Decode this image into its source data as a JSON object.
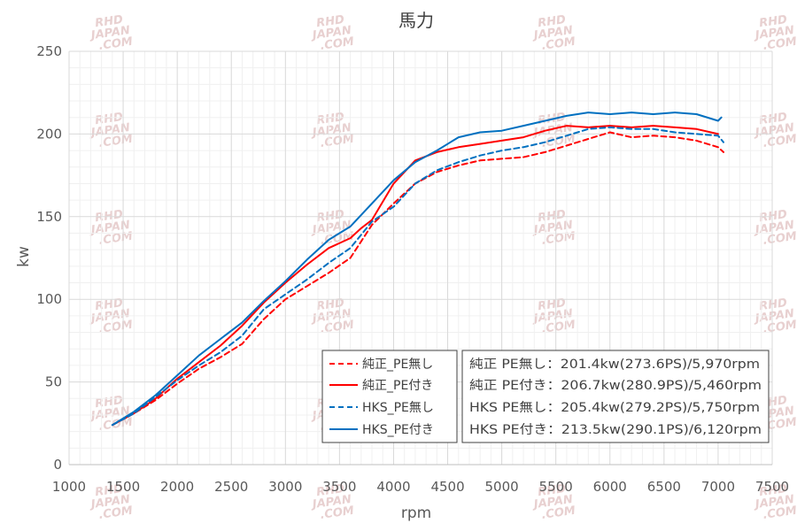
{
  "chart_data": {
    "type": "line",
    "title": "馬力",
    "xlabel": "rpm",
    "ylabel": "kw",
    "xlim": [
      1000,
      7500
    ],
    "ylim": [
      0,
      250
    ],
    "xticks": [
      1000,
      1500,
      2000,
      2500,
      3000,
      3500,
      4000,
      4500,
      5000,
      5500,
      6000,
      6500,
      7000,
      7500
    ],
    "yticks": [
      0,
      50,
      100,
      150,
      200,
      250
    ],
    "grid": true,
    "legend_position": "bottom-right",
    "series": [
      {
        "name": "純正_PE無し",
        "color": "#ff0000",
        "dash": "dashed",
        "x": [
          1400,
          1600,
          1800,
          2000,
          2200,
          2400,
          2600,
          2800,
          3000,
          3200,
          3400,
          3600,
          3800,
          4000,
          4200,
          4400,
          4600,
          4800,
          5000,
          5200,
          5400,
          5600,
          5800,
          6000,
          6200,
          6400,
          6600,
          6800,
          7000,
          7050
        ],
        "y": [
          24,
          31,
          39,
          49,
          58,
          65,
          73,
          88,
          100,
          108,
          116,
          125,
          145,
          158,
          170,
          177,
          181,
          184,
          185,
          186,
          189,
          193,
          197,
          201,
          198,
          199,
          198,
          196,
          192,
          189
        ]
      },
      {
        "name": "純正_PE付き",
        "color": "#ff0000",
        "dash": "solid",
        "x": [
          1400,
          1600,
          1800,
          2000,
          2200,
          2400,
          2600,
          2800,
          3000,
          3200,
          3400,
          3600,
          3700,
          3800,
          4000,
          4200,
          4400,
          4600,
          4800,
          5000,
          5200,
          5400,
          5600,
          5800,
          6000,
          6200,
          6400,
          6600,
          6800,
          7000
        ],
        "y": [
          24,
          31,
          40,
          52,
          62,
          72,
          84,
          98,
          110,
          121,
          131,
          137,
          143,
          148,
          170,
          184,
          189,
          192,
          194,
          196,
          198,
          202,
          205,
          204,
          205,
          204,
          205,
          204,
          203,
          200
        ]
      },
      {
        "name": "HKS_PE無し",
        "color": "#0070c0",
        "dash": "dashed",
        "x": [
          1400,
          1600,
          1800,
          2000,
          2200,
          2400,
          2600,
          2800,
          3000,
          3200,
          3400,
          3600,
          3800,
          4000,
          4200,
          4400,
          4600,
          4800,
          5000,
          5200,
          5400,
          5600,
          5800,
          6000,
          6200,
          6400,
          6600,
          6800,
          7000,
          7050
        ],
        "y": [
          24,
          31,
          41,
          51,
          60,
          68,
          78,
          94,
          103,
          112,
          122,
          131,
          147,
          156,
          170,
          178,
          183,
          187,
          190,
          192,
          195,
          199,
          203,
          204,
          203,
          203,
          201,
          200,
          199,
          195
        ]
      },
      {
        "name": "HKS_PE付き",
        "color": "#0070c0",
        "dash": "solid",
        "x": [
          1400,
          1600,
          1800,
          2000,
          2200,
          2400,
          2600,
          2800,
          3000,
          3200,
          3400,
          3600,
          3800,
          4000,
          4200,
          4400,
          4600,
          4800,
          5000,
          5200,
          5400,
          5600,
          5800,
          6000,
          6200,
          6400,
          6600,
          6800,
          7000,
          7030
        ],
        "y": [
          24,
          32,
          42,
          54,
          66,
          76,
          86,
          99,
          111,
          124,
          136,
          144,
          158,
          172,
          183,
          190,
          198,
          201,
          202,
          205,
          208,
          211,
          213,
          212,
          213,
          212,
          213,
          212,
          208,
          210
        ]
      }
    ],
    "annotation": [
      "純正 PE無し：201.4kw(273.6PS)/5,970rpm",
      "純正 PE付き：206.7kw(280.9PS)/5,460rpm",
      "HKS PE無し：205.4kw(279.2PS)/5,750rpm",
      "HKS PE付き：213.5kw(290.1PS)/6,120rpm"
    ],
    "watermark": [
      "RHD",
      "JAPAN",
      ".COM"
    ]
  }
}
